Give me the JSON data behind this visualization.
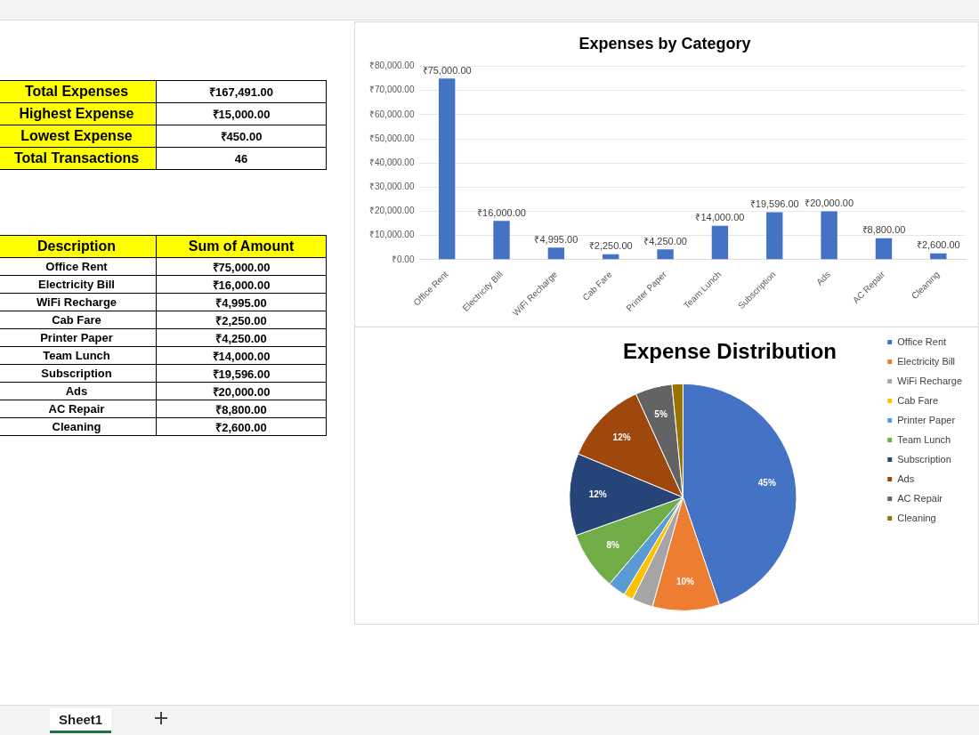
{
  "chart_data": [
    {
      "type": "other",
      "annotations": [
        "Total Expenses",
        "₹167,491.00",
        "Highest Expense",
        "₹15,000.00",
        "Lowest Expense",
        "₹450.00",
        "Total Transactions",
        "46",
        "Description",
        "Sum of Amount",
        "Office Rent",
        "₹75,000.00",
        "Electricity Bill",
        "₹16,000.00",
        "WiFi Recharge",
        "₹4,995.00",
        "Cab Fare",
        "₹2,250.00",
        "Printer Paper",
        "₹4,250.00",
        "Team Lunch",
        "₹14,000.00",
        "Subscription",
        "₹19,596.00",
        "Ads",
        "₹20,000.00",
        "AC Repair",
        "₹8,800.00",
        "Cleaning",
        "₹2,600.00",
        "Sheet1"
      ]
    },
    {
      "type": "bar",
      "title": "Expenses by Category",
      "categories": [
        "Office Rent",
        "Electricity Bill",
        "WiFi Recharge",
        "Cab Fare",
        "Printer Paper",
        "Team Lunch",
        "Subscription",
        "Ads",
        "AC Repair",
        "Cleaning"
      ],
      "values": [
        75000,
        16000,
        4995,
        2250,
        4250,
        14000,
        19596,
        20000,
        8800,
        2600
      ],
      "value_labels": [
        "₹75,000.00",
        "₹16,000.00",
        "₹4,995.00",
        "₹2,250.00",
        "₹4,250.00",
        "₹14,000.00",
        "₹19,596.00",
        "₹20,000.00",
        "₹8,800.00",
        "₹2,600.00"
      ],
      "color": "#4472c4",
      "ylim": [
        0,
        80000
      ],
      "yticks": [
        {
          "value": 0,
          "label": "₹0.00"
        },
        {
          "value": 10000,
          "label": "₹10,000.00"
        },
        {
          "value": 20000,
          "label": "₹20,000.00"
        },
        {
          "value": 30000,
          "label": "₹30,000.00"
        },
        {
          "value": 40000,
          "label": "₹40,000.00"
        },
        {
          "value": 50000,
          "label": "₹50,000.00"
        },
        {
          "value": 60000,
          "label": "₹60,000.00"
        },
        {
          "value": 70000,
          "label": "₹70,000.00"
        },
        {
          "value": 80000,
          "label": "₹80,000.00"
        }
      ],
      "grid": "y"
    },
    {
      "type": "pie",
      "title": "Expense Distribution",
      "categories": [
        "Office Rent",
        "Electricity Bill",
        "WiFi Recharge",
        "Cab Fare",
        "Printer Paper",
        "Team Lunch",
        "Subscription",
        "Ads",
        "AC Repair",
        "Cleaning"
      ],
      "values": [
        44.79,
        9.55,
        2.98,
        1.34,
        2.54,
        8.36,
        11.7,
        11.94,
        5.25,
        1.55
      ],
      "value_labels": [
        "45%",
        "10%",
        null,
        null,
        null,
        "8%",
        "12%",
        "12%",
        "5%",
        null
      ],
      "colors": [
        "#4472c4",
        "#ed7d31",
        "#a5a5a5",
        "#ffc000",
        "#5b9bd5",
        "#70ad47",
        "#264478",
        "#9e480e",
        "#636363",
        "#997300"
      ],
      "legend": "right"
    }
  ]
}
